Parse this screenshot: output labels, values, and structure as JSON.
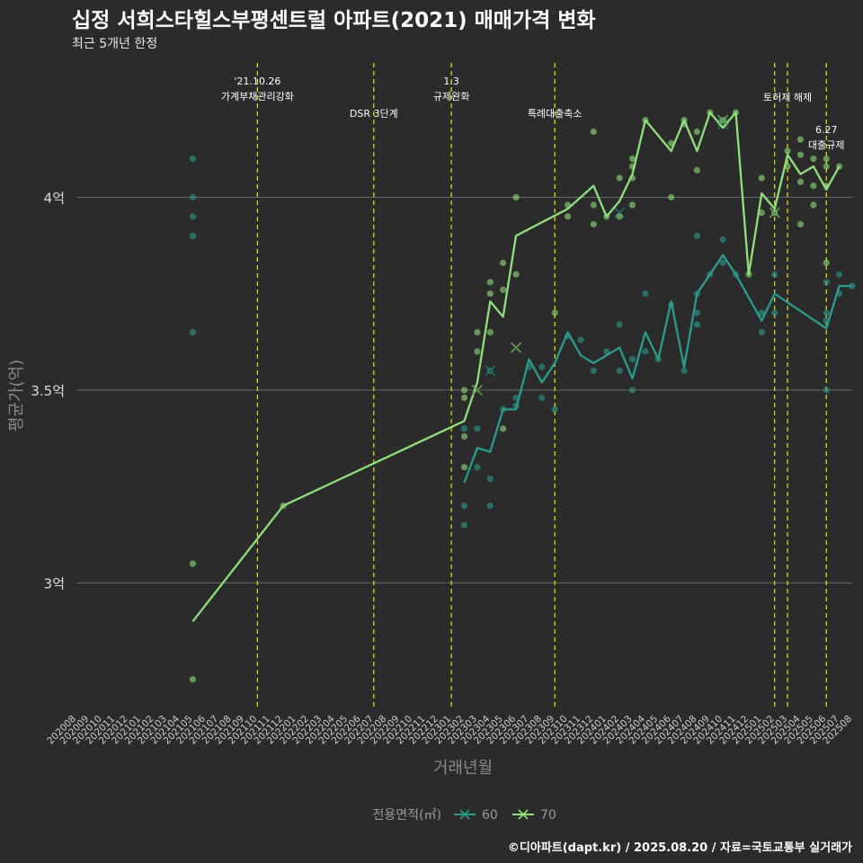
{
  "title": "십정 서희스타힐스부평센트럴 아파트(2021) 매매가격 변화",
  "subtitle": "최근 5개년 한정",
  "caption": "©디아파트(dapt.kr) / 2025.08.20 / 자료=국토교통부 실거래가",
  "colors": {
    "60": "#2a9d8f",
    "70": "#8fe07c",
    "vline": "#e6e619",
    "grid": "#6a6a6a"
  },
  "chart_data": {
    "type": "line",
    "xlabel": "거래년월",
    "ylabel": "평균가(억)",
    "ylim": [
      2.67,
      4.36
    ],
    "yticks": [
      3,
      3.5,
      4
    ],
    "ytick_labels": [
      "3억",
      "3.5억",
      "4억"
    ],
    "x_categories": [
      "202008",
      "202009",
      "202010",
      "202011",
      "202012",
      "202101",
      "202102",
      "202103",
      "202104",
      "202105",
      "202106",
      "202107",
      "202108",
      "202109",
      "202110",
      "202111",
      "202112",
      "202201",
      "202202",
      "202203",
      "202204",
      "202205",
      "202206",
      "202207",
      "202208",
      "202209",
      "202210",
      "202211",
      "202212",
      "202301",
      "202302",
      "202303",
      "202304",
      "202305",
      "202306",
      "202307",
      "202308",
      "202309",
      "202310",
      "202311",
      "202312",
      "202401",
      "202402",
      "202403",
      "202404",
      "202405",
      "202406",
      "202407",
      "202408",
      "202409",
      "202410",
      "202411",
      "202412",
      "202501",
      "202502",
      "202503",
      "202504",
      "202505",
      "202506",
      "202507",
      "202508"
    ],
    "legend": {
      "title": "전용면적(㎡)",
      "position": "bottom",
      "entries": [
        "60",
        "70"
      ]
    },
    "series": [
      {
        "name": "60",
        "line": [
          [
            "202302",
            3.26
          ],
          [
            "202303",
            3.35
          ],
          [
            "202304",
            3.34
          ],
          [
            "202305",
            3.45
          ],
          [
            "202306",
            3.45
          ],
          [
            "202307",
            3.58
          ],
          [
            "202308",
            3.52
          ],
          [
            "202309",
            3.57
          ],
          [
            "202310",
            3.65
          ],
          [
            "202311",
            3.59
          ],
          [
            "202312",
            3.57
          ],
          [
            "202401",
            3.59
          ],
          [
            "202402",
            3.61
          ],
          [
            "202403",
            3.53
          ],
          [
            "202404",
            3.65
          ],
          [
            "202405",
            3.58
          ],
          [
            "202406",
            3.73
          ],
          [
            "202407",
            3.56
          ],
          [
            "202408",
            3.75
          ],
          [
            "202409",
            3.8
          ],
          [
            "202410",
            3.85
          ],
          [
            "202411",
            3.8
          ],
          [
            "202501",
            3.68
          ],
          [
            "202502",
            3.75
          ],
          [
            "202506",
            3.66
          ],
          [
            "202507",
            3.77
          ],
          [
            "202508",
            3.77
          ]
        ],
        "points": [
          [
            "202105",
            4.1
          ],
          [
            "202105",
            4.0
          ],
          [
            "202105",
            3.95
          ],
          [
            "202105",
            3.9
          ],
          [
            "202105",
            3.65
          ],
          [
            "202302",
            3.4
          ],
          [
            "202302",
            3.2
          ],
          [
            "202302",
            3.15
          ],
          [
            "202303",
            3.4
          ],
          [
            "202303",
            3.3
          ],
          [
            "202304",
            3.55
          ],
          [
            "202304",
            3.27
          ],
          [
            "202304",
            3.2
          ],
          [
            "202305",
            3.45
          ],
          [
            "202306",
            3.48
          ],
          [
            "202306",
            3.46
          ],
          [
            "202307",
            3.56
          ],
          [
            "202308",
            3.48
          ],
          [
            "202308",
            3.56
          ],
          [
            "202309",
            3.45
          ],
          [
            "202310",
            3.64
          ],
          [
            "202311",
            3.63
          ],
          [
            "202312",
            3.55
          ],
          [
            "202401",
            3.6
          ],
          [
            "202402",
            3.67
          ],
          [
            "202402",
            3.55
          ],
          [
            "202403",
            3.58
          ],
          [
            "202403",
            3.5
          ],
          [
            "202404",
            3.75
          ],
          [
            "202404",
            3.6
          ],
          [
            "202405",
            3.58
          ],
          [
            "202406",
            3.72
          ],
          [
            "202407",
            3.55
          ],
          [
            "202408",
            3.9
          ],
          [
            "202408",
            3.75
          ],
          [
            "202408",
            3.7
          ],
          [
            "202408",
            3.67
          ],
          [
            "202409",
            3.8
          ],
          [
            "202410",
            3.89
          ],
          [
            "202410",
            3.83
          ],
          [
            "202411",
            3.8
          ],
          [
            "202501",
            3.7
          ],
          [
            "202501",
            3.65
          ],
          [
            "202502",
            3.8
          ],
          [
            "202502",
            3.7
          ],
          [
            "202506",
            3.78
          ],
          [
            "202506",
            3.7
          ],
          [
            "202506",
            3.68
          ],
          [
            "202506",
            3.5
          ],
          [
            "202507",
            3.8
          ],
          [
            "202507",
            3.75
          ],
          [
            "202508",
            3.77
          ]
        ],
        "crosses": [
          [
            "202304",
            3.55
          ],
          [
            "202402",
            3.96
          ],
          [
            "202410",
            4.19
          ]
        ]
      },
      {
        "name": "70",
        "line": [
          [
            "202105",
            2.9
          ],
          [
            "202112",
            3.2
          ],
          [
            "202302",
            3.42
          ],
          [
            "202303",
            3.52
          ],
          [
            "202304",
            3.73
          ],
          [
            "202305",
            3.69
          ],
          [
            "202306",
            3.9
          ],
          [
            "202310",
            3.97
          ],
          [
            "202312",
            4.03
          ],
          [
            "202401",
            3.95
          ],
          [
            "202402",
            3.99
          ],
          [
            "202403",
            4.06
          ],
          [
            "202404",
            4.2
          ],
          [
            "202406",
            4.12
          ],
          [
            "202407",
            4.2
          ],
          [
            "202408",
            4.12
          ],
          [
            "202409",
            4.22
          ],
          [
            "202410",
            4.18
          ],
          [
            "202411",
            4.22
          ],
          [
            "202412",
            3.8
          ],
          [
            "202501",
            4.01
          ],
          [
            "202502",
            3.97
          ],
          [
            "202503",
            4.11
          ],
          [
            "202504",
            4.06
          ],
          [
            "202505",
            4.08
          ],
          [
            "202506",
            4.02
          ],
          [
            "202507",
            4.08
          ]
        ],
        "points": [
          [
            "202105",
            3.05
          ],
          [
            "202105",
            2.75
          ],
          [
            "202112",
            3.2
          ],
          [
            "202302",
            3.5
          ],
          [
            "202302",
            3.48
          ],
          [
            "202302",
            3.38
          ],
          [
            "202302",
            3.3
          ],
          [
            "202303",
            3.65
          ],
          [
            "202303",
            3.6
          ],
          [
            "202304",
            3.78
          ],
          [
            "202304",
            3.75
          ],
          [
            "202304",
            3.65
          ],
          [
            "202305",
            3.83
          ],
          [
            "202305",
            3.76
          ],
          [
            "202305",
            3.4
          ],
          [
            "202306",
            4.0
          ],
          [
            "202306",
            3.8
          ],
          [
            "202309",
            3.7
          ],
          [
            "202310",
            3.98
          ],
          [
            "202310",
            3.95
          ],
          [
            "202312",
            4.17
          ],
          [
            "202312",
            3.98
          ],
          [
            "202312",
            3.93
          ],
          [
            "202401",
            3.95
          ],
          [
            "202402",
            4.05
          ],
          [
            "202402",
            3.95
          ],
          [
            "202403",
            4.1
          ],
          [
            "202403",
            4.08
          ],
          [
            "202403",
            4.05
          ],
          [
            "202403",
            3.98
          ],
          [
            "202404",
            4.2
          ],
          [
            "202406",
            4.14
          ],
          [
            "202406",
            4.0
          ],
          [
            "202407",
            4.2
          ],
          [
            "202407",
            4.19
          ],
          [
            "202408",
            4.17
          ],
          [
            "202408",
            4.07
          ],
          [
            "202409",
            4.22
          ],
          [
            "202410",
            4.2
          ],
          [
            "202411",
            4.22
          ],
          [
            "202412",
            3.8
          ],
          [
            "202501",
            4.05
          ],
          [
            "202501",
            3.96
          ],
          [
            "202502",
            3.96
          ],
          [
            "202503",
            4.12
          ],
          [
            "202503",
            4.08
          ],
          [
            "202504",
            4.15
          ],
          [
            "202504",
            4.11
          ],
          [
            "202504",
            4.04
          ],
          [
            "202504",
            3.93
          ],
          [
            "202505",
            4.1
          ],
          [
            "202505",
            4.03
          ],
          [
            "202505",
            3.98
          ],
          [
            "202506",
            4.1
          ],
          [
            "202506",
            4.08
          ],
          [
            "202506",
            4.03
          ],
          [
            "202506",
            3.83
          ],
          [
            "202507",
            4.08
          ]
        ],
        "crosses": [
          [
            "202303",
            3.5
          ],
          [
            "202306",
            3.61
          ],
          [
            "202410",
            4.2
          ],
          [
            "202502",
            3.96
          ]
        ]
      }
    ],
    "events": [
      {
        "month": "202110",
        "lines": [
          "'21.10.26",
          "가계부채관리강화"
        ],
        "level": 0
      },
      {
        "month": "202207",
        "lines": [
          "DSR 3단계"
        ],
        "level": 1
      },
      {
        "month": "202301",
        "lines": [
          "1.3",
          "규제완화"
        ],
        "level": 0
      },
      {
        "month": "202309",
        "lines": [
          "특례대출축소"
        ],
        "level": 1
      },
      {
        "month": "202502",
        "lines": [],
        "level": 0
      },
      {
        "month": "202503",
        "lines": [
          "토허제 해제"
        ],
        "level": 0.5
      },
      {
        "month": "202506",
        "lines": [
          "6.27",
          "대출규제"
        ],
        "level": 1.5
      }
    ]
  }
}
